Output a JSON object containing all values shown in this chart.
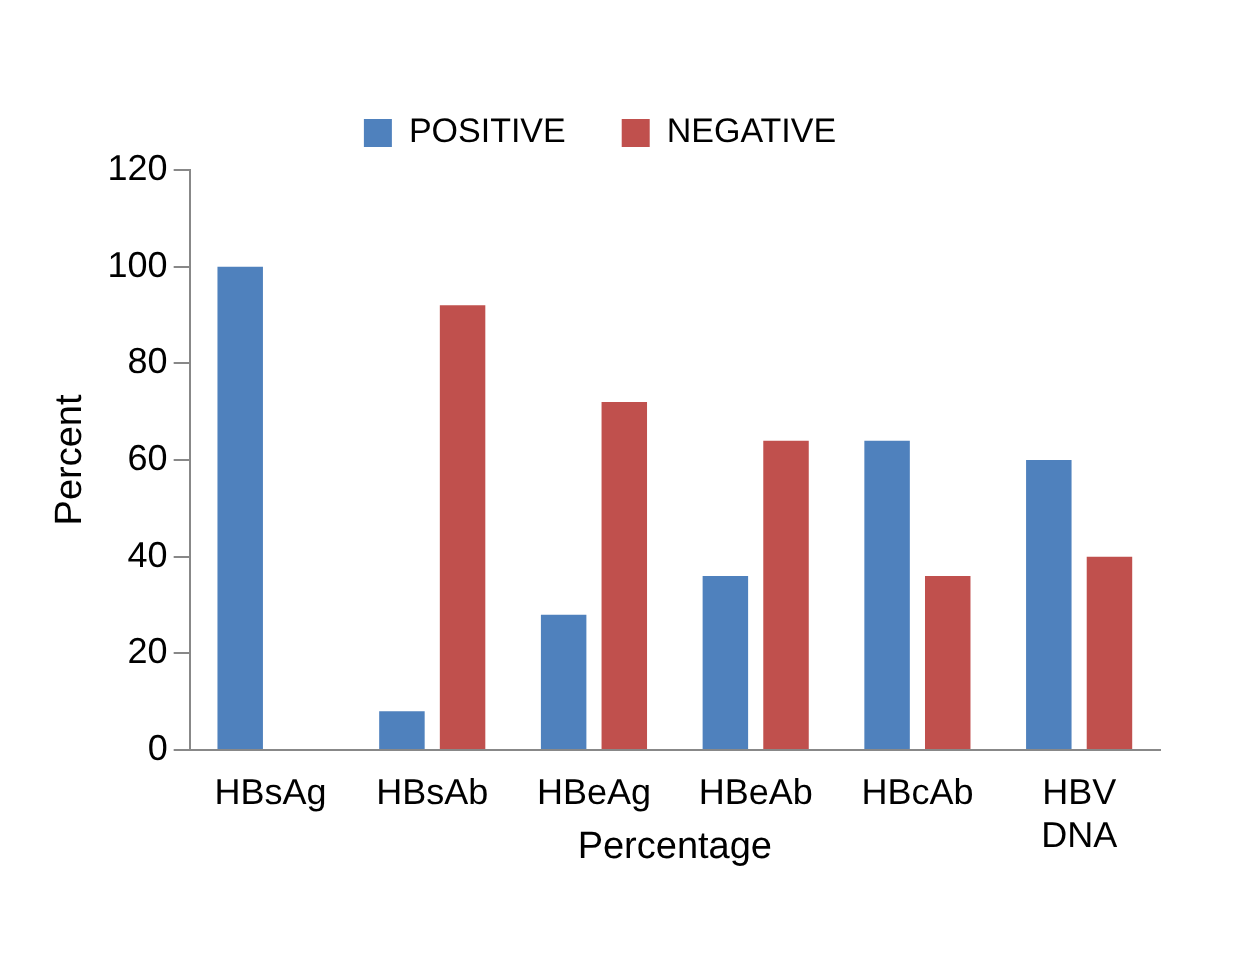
{
  "chart_data": {
    "type": "bar",
    "xlabel": "Percentage",
    "ylabel": "Percent",
    "categories": [
      "HBsAg",
      "HBsAb",
      "HBeAg",
      "HBeAb",
      "HBcAb",
      "HBV DNA"
    ],
    "series": [
      {
        "name": "POSITIVE",
        "color": "#4f81bd",
        "values": [
          100,
          8,
          28,
          36,
          64,
          60
        ]
      },
      {
        "name": "NEGATIVE",
        "color": "#c0504d",
        "values": [
          0,
          92,
          72,
          64,
          36,
          40
        ]
      }
    ],
    "ylim": [
      0,
      120
    ],
    "yticks": [
      0,
      20,
      40,
      60,
      80,
      100,
      120
    ],
    "grid": false,
    "legend": "top"
  }
}
